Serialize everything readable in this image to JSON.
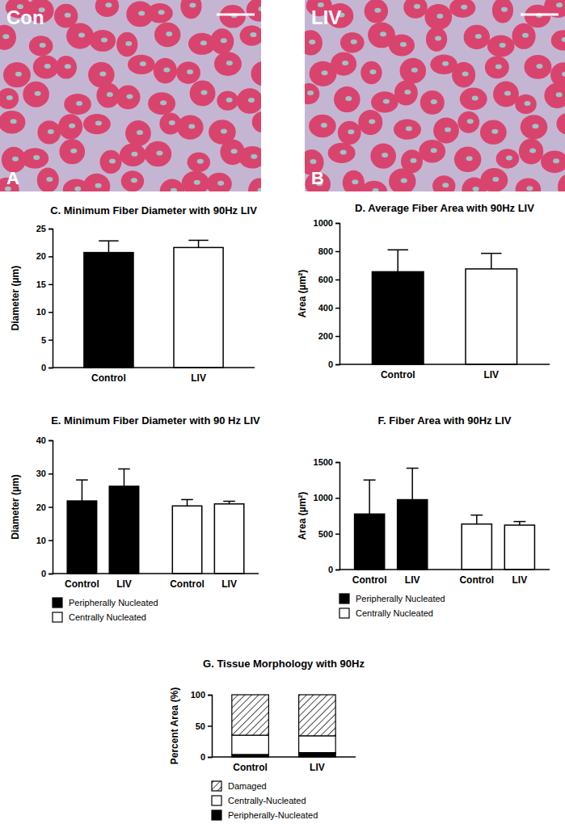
{
  "images": [
    {
      "label": "Con",
      "panel_label": "A"
    },
    {
      "label": "LIV",
      "panel_label": "B"
    }
  ],
  "chart_data": [
    {
      "type": "bar",
      "title": "C. Minimum Fiber Diameter with 90Hz LIV",
      "y_label": "Diameter (µm)",
      "categories": [
        "Control",
        "LIV"
      ],
      "values": [
        20.7,
        21.6
      ],
      "errors": [
        2.1,
        1.3
      ],
      "colors": [
        "#000000",
        "#ffffff"
      ],
      "ylim": [
        0,
        25
      ],
      "yticks": [
        0,
        5,
        10,
        15,
        20,
        25
      ]
    },
    {
      "type": "bar",
      "title": "D. Average Fiber Area with 90Hz LIV",
      "y_label": "Area (µm²)",
      "categories": [
        "Control",
        "LIV"
      ],
      "values": [
        655,
        675
      ],
      "errors": [
        155,
        110
      ],
      "colors": [
        "#000000",
        "#ffffff"
      ],
      "ylim": [
        0,
        1000
      ],
      "yticks": [
        0,
        200,
        400,
        600,
        800,
        1000
      ]
    },
    {
      "type": "bar",
      "title": "E. Minimum Fiber Diameter with 90 Hz LIV",
      "y_label": "Diameter (µm)",
      "categories": [
        "Control",
        "LIV"
      ],
      "series": [
        {
          "name": "Peripherally Nucleated",
          "color": "#000000",
          "values": [
            21.8,
            26.2
          ],
          "errors": [
            6.3,
            5.2
          ]
        },
        {
          "name": "Centrally Nucleated",
          "color": "#ffffff",
          "values": [
            20.3,
            20.9
          ],
          "errors": [
            1.9,
            0.8
          ]
        }
      ],
      "ylim": [
        0,
        40
      ],
      "yticks": [
        0,
        10,
        20,
        30,
        40
      ],
      "legend": "bottom"
    },
    {
      "type": "bar",
      "title": "F. Fiber Area with 90Hz LIV",
      "y_label": "Area (µm²)",
      "categories": [
        "Control",
        "LIV"
      ],
      "series": [
        {
          "name": "Peripherally Nucleated",
          "color": "#000000",
          "values": [
            775,
            975
          ],
          "errors": [
            475,
            440
          ]
        },
        {
          "name": "Centrally Nucleated",
          "color": "#ffffff",
          "values": [
            635,
            620
          ],
          "errors": [
            125,
            50
          ]
        }
      ],
      "ylim": [
        0,
        1500
      ],
      "yticks": [
        0,
        500,
        1000,
        1500
      ],
      "legend": "bottom"
    },
    {
      "type": "bar",
      "stacked": true,
      "title": "G. Tissue Morphology with 90Hz",
      "y_label": "Percent Area (%)",
      "categories": [
        "Control",
        "LIV"
      ],
      "series": [
        {
          "name": "Peripherally-Nucleated",
          "color": "#000000",
          "values": [
            4,
            7
          ]
        },
        {
          "name": "Centrally-Nucleated",
          "color": "#ffffff",
          "values": [
            31,
            27
          ]
        },
        {
          "name": "Damaged",
          "color": "#ffffff",
          "marker": "hatch",
          "values": [
            65,
            66
          ]
        }
      ],
      "ylim": [
        0,
        100
      ],
      "yticks": [
        0,
        50,
        100
      ],
      "legend": "bottom"
    }
  ]
}
